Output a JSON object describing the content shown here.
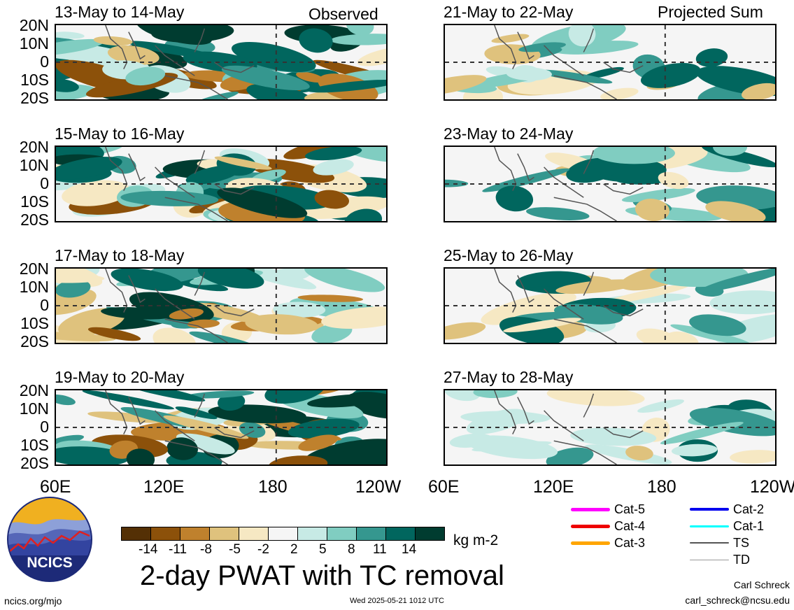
{
  "panels": {
    "observed_label": "Observed",
    "projected_label": "Projected Sum",
    "left": [
      {
        "title": "13-May to 14-May"
      },
      {
        "title": "15-May to 16-May"
      },
      {
        "title": "17-May to 18-May"
      },
      {
        "title": "19-May to 20-May"
      }
    ],
    "right": [
      {
        "title": "21-May to 22-May"
      },
      {
        "title": "23-May to 24-May"
      },
      {
        "title": "25-May to 26-May"
      },
      {
        "title": "27-May to 28-May"
      }
    ]
  },
  "axes": {
    "lat_labels": [
      "20N",
      "10N",
      "0",
      "10S",
      "20S"
    ],
    "lon_labels": [
      "60E",
      "120E",
      "180",
      "120W"
    ]
  },
  "colorbar": {
    "units": "kg m-2",
    "ticks": [
      "-14",
      "-11",
      "-8",
      "-5",
      "-2",
      "2",
      "5",
      "8",
      "11",
      "14"
    ],
    "colors": [
      "#543005",
      "#8c510a",
      "#bf812d",
      "#dfc27d",
      "#f6e8c3",
      "#f5f5f5",
      "#c7eae5",
      "#80cdc1",
      "#35978f",
      "#01665e",
      "#003c30"
    ]
  },
  "title": "2-day PWAT with TC removal",
  "logo": {
    "text": "NCICS"
  },
  "footer": {
    "url": "ncics.org/mjo",
    "timestamp": "Wed 2025-05-21 1012 UTC",
    "author": "Carl Schreck",
    "email": "carl_schreck@ncsu.edu"
  },
  "tc_legend": [
    {
      "label": "Cat-5",
      "color": "#ff00ff",
      "width": 5
    },
    {
      "label": "Cat-4",
      "color": "#ee0000",
      "width": 5
    },
    {
      "label": "Cat-3",
      "color": "#ffa500",
      "width": 5
    },
    {
      "label": "Cat-2",
      "color": "#0000ee",
      "width": 4
    },
    {
      "label": "Cat-1",
      "color": "#00ffff",
      "width": 3
    },
    {
      "label": "TS",
      "color": "#555555",
      "width": 2
    },
    {
      "label": "TD",
      "color": "#999999",
      "width": 1
    }
  ]
}
